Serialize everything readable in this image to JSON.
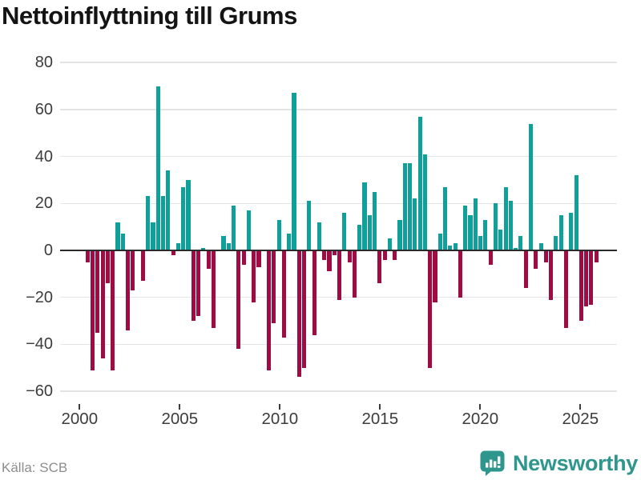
{
  "title": "Nettoinflyttning till Grums",
  "source": "Källa: SCB",
  "branding": {
    "name": "Newsworthy",
    "color": "#2e968c"
  },
  "chart_data": {
    "type": "bar",
    "title": "Nettoinflyttning till Grums",
    "frequency": "quarterly",
    "start": "2000 Q1",
    "end": "2025 Q3",
    "values": [
      0,
      -5,
      -51,
      -35,
      -46,
      -14,
      -51,
      12,
      7,
      -34,
      -17,
      0,
      -13,
      23,
      12,
      70,
      23,
      34,
      -2,
      3,
      27,
      30,
      -30,
      -28,
      1,
      -8,
      -33,
      0,
      6,
      3,
      19,
      -42,
      -6,
      17,
      -22,
      -7,
      0,
      -51,
      -31,
      13,
      -37,
      7,
      67,
      -54,
      -50,
      21,
      -36,
      12,
      -4,
      -9,
      -2,
      -21,
      16,
      -5,
      -20,
      11,
      29,
      15,
      25,
      -14,
      -4,
      5,
      -4,
      13,
      37,
      37,
      22,
      57,
      41,
      -50,
      -22,
      7,
      27,
      2,
      3,
      -20,
      19,
      15,
      22,
      6,
      13,
      -6,
      20,
      9,
      27,
      21,
      1,
      6,
      -16,
      54,
      -8,
      3,
      -5,
      -21,
      6,
      15,
      -33,
      16,
      32,
      -30,
      -24,
      -23,
      -5
    ],
    "xticks": [
      "2000",
      "2005",
      "2010",
      "2015",
      "2020",
      "2025"
    ],
    "yticks": [
      80,
      60,
      40,
      20,
      0,
      -20,
      -40,
      -60
    ],
    "ytick_labels": [
      "80",
      "60",
      "40",
      "20",
      "0",
      "−20",
      "−40",
      "−60"
    ],
    "ylim": [
      -60,
      80
    ],
    "grid": true,
    "legend_position": "none",
    "colors": {
      "positive": "#0fa09a",
      "negative": "#9e0c43",
      "axis": "#2b2b2b",
      "gridline": "#e4e4e4",
      "tick_text": "#3c3c3c"
    }
  }
}
